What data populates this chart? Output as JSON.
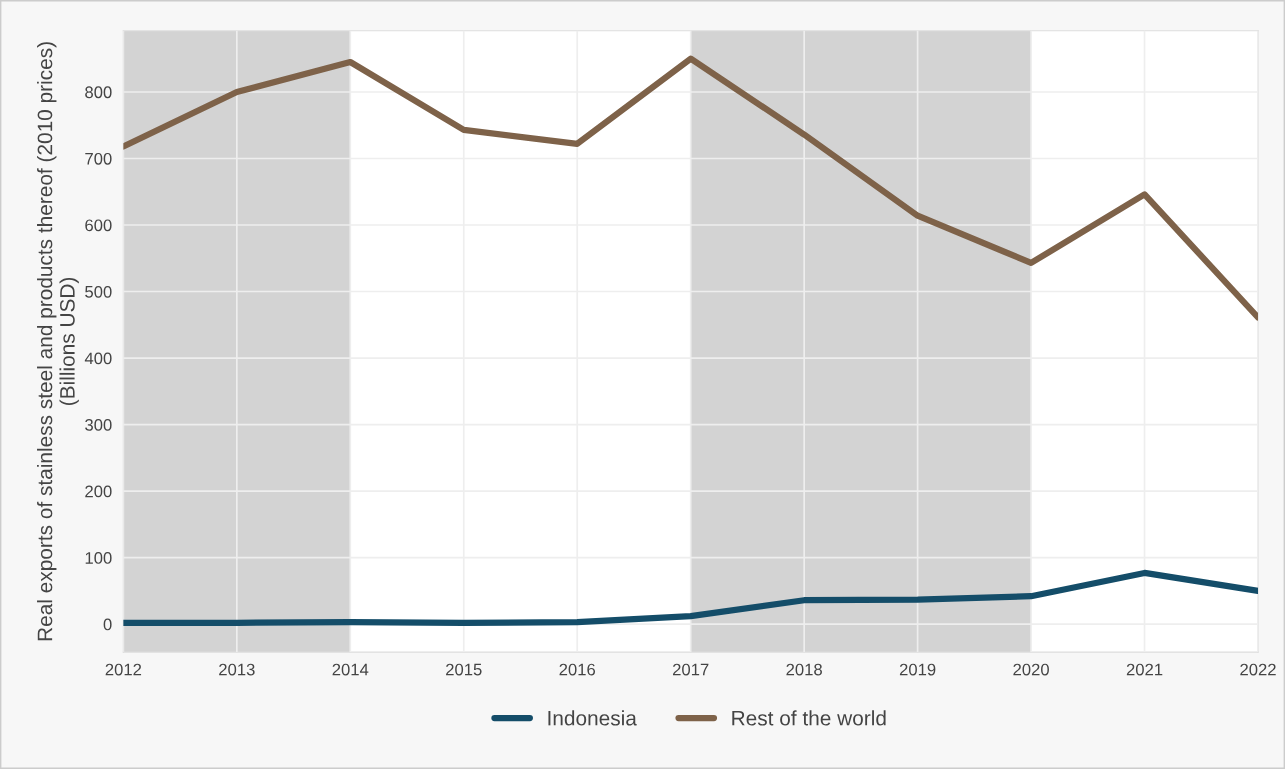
{
  "chart_data": {
    "type": "line",
    "ylabel": "Real exports of stainless steel and products thereof (2010 prices)\n(Billions USD)",
    "x": [
      2012,
      2013,
      2014,
      2015,
      2016,
      2017,
      2018,
      2019,
      2020,
      2021,
      2022
    ],
    "series": [
      {
        "name": "Indonesia",
        "color": "#144d69",
        "values": [
          2,
          2,
          3,
          2,
          3,
          12,
          36,
          37,
          42,
          77,
          50
        ]
      },
      {
        "name": "Rest of the world",
        "color": "#7e6249",
        "values": [
          718,
          800,
          845,
          743,
          722,
          850,
          736,
          614,
          543,
          646,
          461
        ]
      }
    ],
    "xlim": [
      2012,
      2022
    ],
    "xticks": [
      2012,
      2013,
      2014,
      2015,
      2016,
      2017,
      2018,
      2019,
      2020,
      2021,
      2022
    ],
    "ylim": [
      -42,
      892
    ],
    "yticks": [
      0,
      100,
      200,
      300,
      400,
      500,
      600,
      700,
      800
    ],
    "bands": [
      {
        "axis": "x",
        "from": 2012,
        "to": 2014,
        "color": "#d3d3d3"
      },
      {
        "axis": "x",
        "from": 2017,
        "to": 2020,
        "color": "#d3d3d3"
      }
    ],
    "grid": true,
    "legend": "bottom",
    "marker": "none",
    "line_style": "solid"
  }
}
